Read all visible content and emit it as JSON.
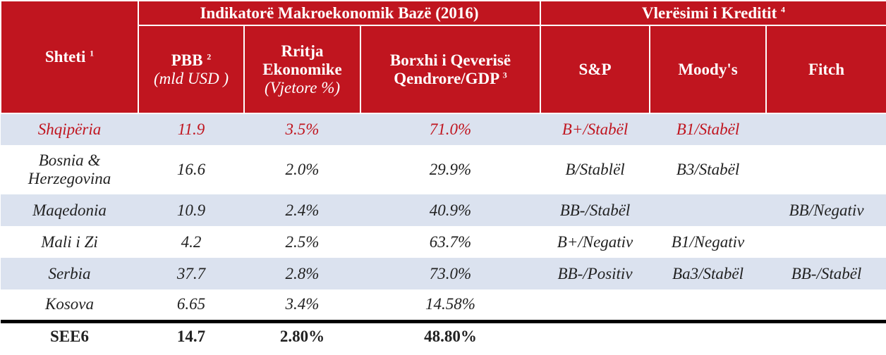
{
  "header": {
    "country": {
      "label": "Shteti",
      "note": "1"
    },
    "group1": "Indikatorë Makroekonomik Bazë (2016)",
    "group2": {
      "label": "Vlerësimi i  Kreditit",
      "note": "4"
    },
    "columns": [
      {
        "label": "PBB",
        "note": "2",
        "sub": "(mld USD )"
      },
      {
        "label": "Rritja Ekonomike",
        "sub": "(Vjetore %)"
      },
      {
        "label": "Borxhi i Qeverisë Qendrore/GDP",
        "note": "3"
      },
      {
        "label": "S&P"
      },
      {
        "label": "Moody's"
      },
      {
        "label": "Fitch"
      }
    ]
  },
  "rows": [
    [
      "Shqipëria",
      "11.9",
      "3.5%",
      "71.0%",
      "B+/Stabël",
      "B1/Stabël",
      null
    ],
    [
      "Bosnia & Herzegovina",
      "16.6",
      "2.0%",
      "29.9%",
      "B/Stablël",
      "B3/Stabël",
      null
    ],
    [
      "Maqedonia",
      "10.9",
      "2.4%",
      "40.9%",
      "BB-/Stabël",
      null,
      "BB/Negativ"
    ],
    [
      "Mali i Zi",
      "4.2",
      "2.5%",
      "63.7%",
      "B+/Negativ",
      "B1/Negativ",
      null
    ],
    [
      "Serbia",
      "37.7",
      "2.8%",
      "73.0%",
      "BB-/Positiv",
      "Ba3/Stabël",
      "BB-/Stabël"
    ],
    [
      "Kosova",
      "6.65",
      "3.4%",
      "14.58%",
      null,
      null,
      null
    ]
  ],
  "total": [
    "SEE6",
    "14.7",
    "2.80%",
    "48.80%"
  ]
}
